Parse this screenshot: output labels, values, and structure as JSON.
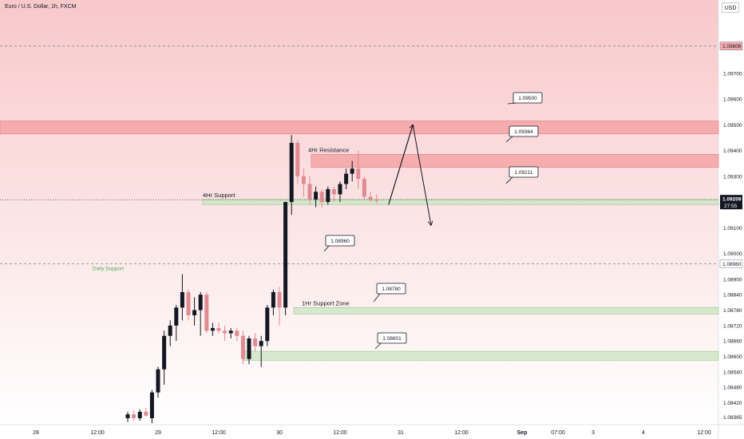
{
  "header": {
    "symbol_title": "Euro / U.S. Dollar, 1h, FXCM",
    "currency_button": "USD"
  },
  "colors": {
    "background_top": "#f8c8ca",
    "background_bottom": "#ffffff",
    "resistance_zone": "#f4a4a6",
    "support_zone": "#cfe6c8",
    "bull_candle": "#131722",
    "bear_candle": "#e08a91",
    "price_tag": "#131722"
  },
  "chart_data": {
    "type": "candlestick",
    "title": "Euro / U.S. Dollar, 1h, FXCM",
    "currency": "USD",
    "y_axis": {
      "ylim": [
        1.08335,
        1.09985
      ],
      "tick_labels": [
        "1.09700",
        "1.09600",
        "1.09500",
        "1.09400",
        "1.09300",
        "1.09100",
        "1.09000",
        "1.08900",
        "1.08840",
        "1.08780",
        "1.08720",
        "1.08660",
        "1.08600",
        "1.08540",
        "1.08480",
        "1.08420",
        "1.08365"
      ],
      "highlighted_labels": [
        {
          "value": 1.09806,
          "label": "1.09806"
        },
        {
          "value": 1.0896,
          "label": "1.08960"
        }
      ],
      "current_price": {
        "value": 1.09209,
        "label": "1.09209",
        "countdown": "27:55"
      }
    },
    "x_axis": {
      "tick_labels": [
        "28",
        "12:00",
        "29",
        "12:00",
        "30",
        "12:00",
        "31",
        "12:00",
        "Sep",
        "07:00",
        "3",
        "4",
        "12:00"
      ]
    },
    "zones": [
      {
        "type": "resistance",
        "low": 1.09465,
        "high": 1.09515,
        "label": ""
      },
      {
        "type": "resistance",
        "low": 1.09335,
        "high": 1.09385,
        "label": "4Hr Resistance"
      },
      {
        "type": "support",
        "low": 1.0919,
        "high": 1.0921,
        "label": "4Hr Support"
      },
      {
        "type": "support",
        "low": 1.08765,
        "high": 1.0879,
        "label": "1Hr Support Zone"
      },
      {
        "type": "support",
        "low": 1.08585,
        "high": 1.0862,
        "label": ""
      }
    ],
    "horizontal_lines": [
      {
        "value": 1.09806,
        "style": "dashed"
      },
      {
        "value": 1.0896,
        "style": "dashed",
        "label": "Daily Support"
      }
    ],
    "callouts": [
      "1.09500",
      "1.09364",
      "1.09211",
      "1.08960",
      "1.08780",
      "1.08601"
    ],
    "candles": [
      {
        "o": 1.0836,
        "h": 1.08385,
        "l": 1.08345,
        "c": 1.08375
      },
      {
        "o": 1.08375,
        "h": 1.0839,
        "l": 1.0835,
        "c": 1.0836
      },
      {
        "o": 1.0836,
        "h": 1.08395,
        "l": 1.0835,
        "c": 1.08385
      },
      {
        "o": 1.08385,
        "h": 1.084,
        "l": 1.08365,
        "c": 1.0837
      },
      {
        "o": 1.0836,
        "h": 1.0847,
        "l": 1.0834,
        "c": 1.0846
      },
      {
        "o": 1.0846,
        "h": 1.0856,
        "l": 1.0844,
        "c": 1.0855
      },
      {
        "o": 1.0855,
        "h": 1.087,
        "l": 1.0849,
        "c": 1.0868
      },
      {
        "o": 1.0868,
        "h": 1.0874,
        "l": 1.0864,
        "c": 1.0872
      },
      {
        "o": 1.0872,
        "h": 1.088,
        "l": 1.0866,
        "c": 1.0879
      },
      {
        "o": 1.0879,
        "h": 1.0892,
        "l": 1.0874,
        "c": 1.0885
      },
      {
        "o": 1.0885,
        "h": 1.0886,
        "l": 1.0874,
        "c": 1.0876
      },
      {
        "o": 1.0876,
        "h": 1.0883,
        "l": 1.0872,
        "c": 1.0878
      },
      {
        "o": 1.0878,
        "h": 1.0885,
        "l": 1.0868,
        "c": 1.0884
      },
      {
        "o": 1.0884,
        "h": 1.0885,
        "l": 1.0869,
        "c": 1.087
      },
      {
        "o": 1.087,
        "h": 1.0873,
        "l": 1.0868,
        "c": 1.0871
      },
      {
        "o": 1.0871,
        "h": 1.0873,
        "l": 1.0869,
        "c": 1.087
      },
      {
        "o": 1.087,
        "h": 1.0872,
        "l": 1.0866,
        "c": 1.0869
      },
      {
        "o": 1.0869,
        "h": 1.0871,
        "l": 1.0867,
        "c": 1.087
      },
      {
        "o": 1.087,
        "h": 1.0871,
        "l": 1.0866,
        "c": 1.0868
      },
      {
        "o": 1.0868,
        "h": 1.087,
        "l": 1.0857,
        "c": 1.0859
      },
      {
        "o": 1.0859,
        "h": 1.0868,
        "l": 1.0857,
        "c": 1.0867
      },
      {
        "o": 1.0867,
        "h": 1.0869,
        "l": 1.0862,
        "c": 1.0864
      },
      {
        "o": 1.0864,
        "h": 1.0868,
        "l": 1.0856,
        "c": 1.0866
      },
      {
        "o": 1.0866,
        "h": 1.088,
        "l": 1.0864,
        "c": 1.0879
      },
      {
        "o": 1.0879,
        "h": 1.0886,
        "l": 1.0876,
        "c": 1.0885
      },
      {
        "o": 1.0885,
        "h": 1.0887,
        "l": 1.0872,
        "c": 1.0879
      },
      {
        "o": 1.0879,
        "h": 1.092,
        "l": 1.0876,
        "c": 1.092
      },
      {
        "o": 1.092,
        "h": 1.0946,
        "l": 1.0915,
        "c": 1.0943
      },
      {
        "o": 1.0943,
        "h": 1.0944,
        "l": 1.0927,
        "c": 1.093
      },
      {
        "o": 1.093,
        "h": 1.0933,
        "l": 1.0922,
        "c": 1.0927
      },
      {
        "o": 1.0927,
        "h": 1.093,
        "l": 1.0919,
        "c": 1.0921
      },
      {
        "o": 1.0921,
        "h": 1.0926,
        "l": 1.0918,
        "c": 1.0924
      },
      {
        "o": 1.0924,
        "h": 1.0925,
        "l": 1.0918,
        "c": 1.092
      },
      {
        "o": 1.092,
        "h": 1.0926,
        "l": 1.0919,
        "c": 1.0925
      },
      {
        "o": 1.0925,
        "h": 1.0926,
        "l": 1.092,
        "c": 1.0923
      },
      {
        "o": 1.0923,
        "h": 1.0928,
        "l": 1.092,
        "c": 1.0927
      },
      {
        "o": 1.0927,
        "h": 1.0933,
        "l": 1.0925,
        "c": 1.0931
      },
      {
        "o": 1.0931,
        "h": 1.0936,
        "l": 1.0928,
        "c": 1.0933
      },
      {
        "o": 1.0933,
        "h": 1.094,
        "l": 1.0925,
        "c": 1.0929
      },
      {
        "o": 1.0929,
        "h": 1.093,
        "l": 1.0921,
        "c": 1.0922
      },
      {
        "o": 1.0922,
        "h": 1.0924,
        "l": 1.092,
        "c": 1.0921
      },
      {
        "o": 1.0921,
        "h": 1.0923,
        "l": 1.09195,
        "c": 1.09205
      }
    ],
    "projection": [
      {
        "x_index": 43,
        "y": 1.0919
      },
      {
        "x_index": 47,
        "y": 1.095
      },
      {
        "x_index": 50,
        "y": 1.0911
      }
    ],
    "grid": false
  }
}
